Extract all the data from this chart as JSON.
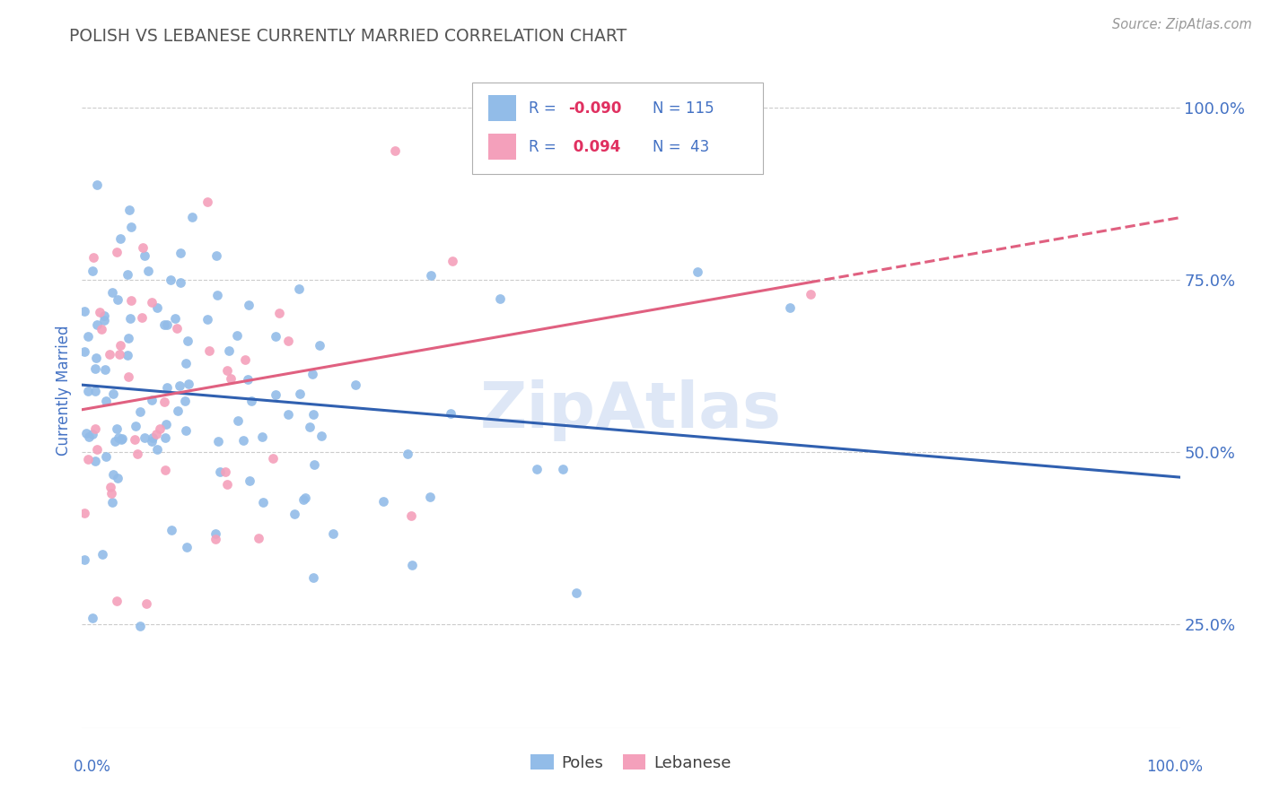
{
  "title": "POLISH VS LEBANESE CURRENTLY MARRIED CORRELATION CHART",
  "source": "Source: ZipAtlas.com",
  "ylabel": "Currently Married",
  "y_ticks": [
    0.25,
    0.5,
    0.75,
    1.0
  ],
  "y_tick_labels": [
    "25.0%",
    "50.0%",
    "75.0%",
    "100.0%"
  ],
  "x_range": [
    0.0,
    1.0
  ],
  "y_range": [
    0.1,
    1.08
  ],
  "poles_R": -0.09,
  "poles_N": 115,
  "lebanese_R": 0.094,
  "lebanese_N": 43,
  "poles_color": "#92bce8",
  "lebanese_color": "#f4a0bb",
  "poles_line_color": "#3060b0",
  "lebanese_line_color": "#e06080",
  "background_color": "#ffffff",
  "title_color": "#555555",
  "axis_color": "#4472c4",
  "grid_color": "#cccccc",
  "legend_label1": "Poles",
  "legend_label2": "Lebanese",
  "seed": 99,
  "watermark_color": "#c8d8f0",
  "watermark_alpha": 0.6
}
